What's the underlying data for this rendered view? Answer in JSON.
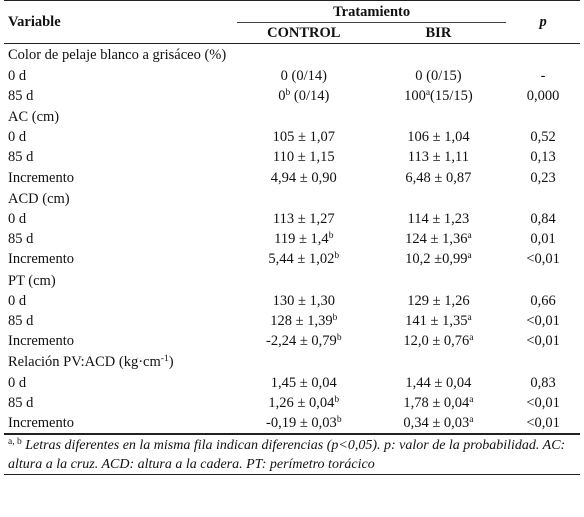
{
  "header": {
    "variable": "Variable",
    "treatment": "Tratamiento",
    "control": "CONTROL",
    "bir": "BIR",
    "p": "p"
  },
  "groups": [
    {
      "title": "Color de pelaje blanco a grisáceo (%)",
      "rows": [
        {
          "label": "0 d",
          "control": "0 (0/14)",
          "control_sup": "",
          "control_suffix": "",
          "bir": "0 (0/15)",
          "bir_sup": "",
          "bir_suffix": "",
          "p": "-"
        },
        {
          "label": "85 d",
          "control": "0",
          "control_sup": "b",
          "control_suffix": " (0/14)",
          "bir": "100",
          "bir_sup": "a",
          "bir_suffix": "(15/15)",
          "p": "0,000"
        }
      ]
    },
    {
      "title": "AC (cm)",
      "rows": [
        {
          "label": "0 d",
          "control": "105 ± 1,07",
          "control_sup": "",
          "control_suffix": "",
          "bir": "106 ± 1,04",
          "bir_sup": "",
          "bir_suffix": "",
          "p": "0,52"
        },
        {
          "label": "85 d",
          "control": "110 ± 1,15",
          "control_sup": "",
          "control_suffix": "",
          "bir": "113 ± 1,11",
          "bir_sup": "",
          "bir_suffix": "",
          "p": "0,13"
        },
        {
          "label": "Incremento",
          "control": "4,94 ± 0,90",
          "control_sup": "",
          "control_suffix": "",
          "bir": "6,48 ± 0,87",
          "bir_sup": "",
          "bir_suffix": "",
          "p": "0,23"
        }
      ]
    },
    {
      "title": "ACD (cm)",
      "rows": [
        {
          "label": "0 d",
          "control": "113 ± 1,27",
          "control_sup": "",
          "control_suffix": "",
          "bir": "114 ± 1,23",
          "bir_sup": "",
          "bir_suffix": "",
          "p": "0,84"
        },
        {
          "label": "85 d",
          "control": "119 ± 1,4",
          "control_sup": "b",
          "control_suffix": "",
          "bir": "124 ± 1,36",
          "bir_sup": "a",
          "bir_suffix": "",
          "p": "0,01"
        },
        {
          "label": "Incremento",
          "control": "5,44 ± 1,02",
          "control_sup": "b",
          "control_suffix": "",
          "bir": "10,2 ±0,99",
          "bir_sup": "a",
          "bir_suffix": "",
          "p": "<0,01"
        }
      ]
    },
    {
      "title": "PT (cm)",
      "rows": [
        {
          "label": "0 d",
          "control": "130 ± 1,30",
          "control_sup": "",
          "control_suffix": "",
          "bir": "129 ± 1,26",
          "bir_sup": "",
          "bir_suffix": "",
          "p": "0,66"
        },
        {
          "label": "85 d",
          "control": "128 ± 1,39",
          "control_sup": "b",
          "control_suffix": "",
          "bir": "141 ± 1,35",
          "bir_sup": "a",
          "bir_suffix": "",
          "p": "<0,01"
        },
        {
          "label": "Incremento",
          "control": "-2,24 ± 0,79",
          "control_sup": "b",
          "control_suffix": "",
          "bir": "12,0 ± 0,76",
          "bir_sup": "a",
          "bir_suffix": "",
          "p": "<0,01"
        }
      ]
    },
    {
      "title": "Relación PV:ACD (kg·cm",
      "title_sup": "-1",
      "title_suffix": ")",
      "rows": [
        {
          "label": "0 d",
          "control": "1,45 ± 0,04",
          "control_sup": "",
          "control_suffix": "",
          "bir": "1,44 ± 0,04",
          "bir_sup": "",
          "bir_suffix": "",
          "p": "0,83"
        },
        {
          "label": "85 d",
          "control": "1,26 ± 0,04",
          "control_sup": "b",
          "control_suffix": "",
          "bir": "1,78 ± 0,04",
          "bir_sup": "a",
          "bir_suffix": "",
          "p": "<0,01"
        },
        {
          "label": "Incremento",
          "control": "-0,19 ± 0,03",
          "control_sup": "b",
          "control_suffix": "",
          "bir": "0,34 ± 0,03",
          "bir_sup": "a",
          "bir_suffix": "",
          "p": "<0,01"
        }
      ]
    }
  ],
  "footnote": {
    "marks": "a, b",
    "text": " Letras diferentes en la misma fila indican diferencias (p<0,05). p: valor de la probabilidad. AC: altura a la cruz. ACD: altura a la cadera. PT: perímetro torácico"
  }
}
